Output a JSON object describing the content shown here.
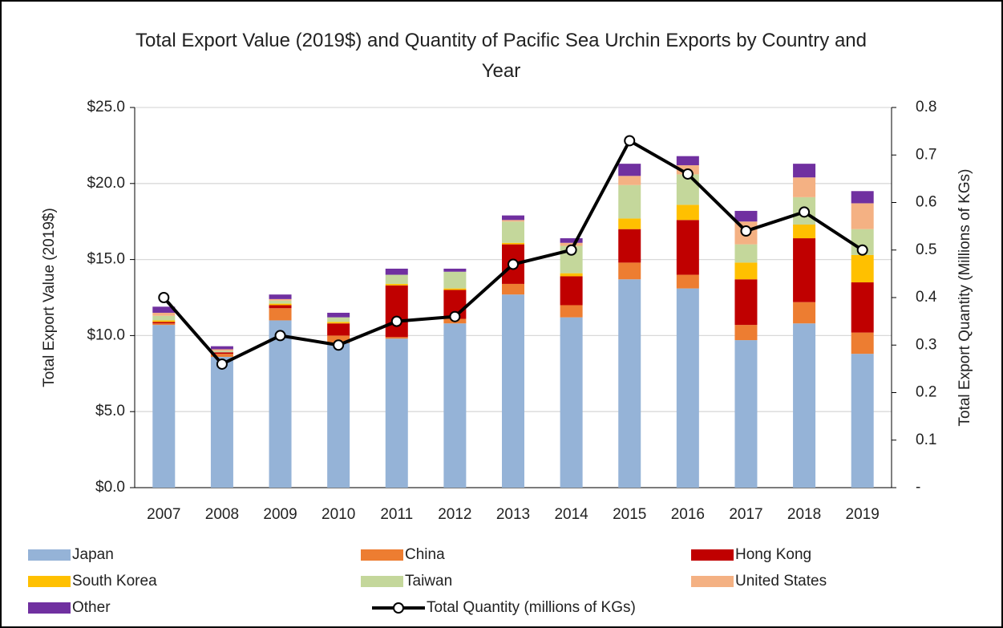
{
  "chart_data": {
    "type": "bar",
    "stacked": true,
    "title": "Total Export Value (2019$) and Quantity of Pacific Sea Urchin Exports by Country and Year",
    "y_label": "Total Export Value (2019$)",
    "y2_label": "Total Export Quantity (Millions of KGs)",
    "categories": [
      "2007",
      "2008",
      "2009",
      "2010",
      "2011",
      "2012",
      "2013",
      "2014",
      "2015",
      "2016",
      "2017",
      "2018",
      "2019"
    ],
    "series": [
      {
        "name": "Japan",
        "color": "#95b3d7",
        "values": [
          10.7,
          8.6,
          11.0,
          9.5,
          9.8,
          10.8,
          12.7,
          11.2,
          13.7,
          13.1,
          9.7,
          10.8,
          8.8
        ]
      },
      {
        "name": "China",
        "color": "#ed7d31",
        "values": [
          0.1,
          0.2,
          0.8,
          0.5,
          0.1,
          0.3,
          0.7,
          0.8,
          1.1,
          0.9,
          1.0,
          1.4,
          1.4
        ]
      },
      {
        "name": "Hong Kong",
        "color": "#c00000",
        "values": [
          0.1,
          0.1,
          0.2,
          0.8,
          3.4,
          1.9,
          2.6,
          1.9,
          2.2,
          3.6,
          3.0,
          4.2,
          3.3
        ]
      },
      {
        "name": "South Korea",
        "color": "#ffc000",
        "values": [
          0.1,
          0.0,
          0.1,
          0.1,
          0.1,
          0.1,
          0.1,
          0.2,
          0.7,
          1.0,
          1.1,
          0.9,
          1.8
        ]
      },
      {
        "name": "Taiwan",
        "color": "#c4d79b",
        "values": [
          0.3,
          0.1,
          0.2,
          0.3,
          0.6,
          1.1,
          1.4,
          1.8,
          2.2,
          2.0,
          1.2,
          1.8,
          1.7
        ]
      },
      {
        "name": "United States",
        "color": "#f4b183",
        "values": [
          0.2,
          0.1,
          0.1,
          0.0,
          0.0,
          0.0,
          0.1,
          0.2,
          0.6,
          0.6,
          1.5,
          1.3,
          1.7
        ]
      },
      {
        "name": "Other",
        "color": "#7030a0",
        "values": [
          0.4,
          0.2,
          0.3,
          0.3,
          0.4,
          0.2,
          0.3,
          0.3,
          0.8,
          0.6,
          0.7,
          0.9,
          0.8
        ]
      },
      {
        "name": "Total Quantity (millions of KGs)",
        "type": "line",
        "axis": "y2",
        "color": "#000000",
        "values": [
          0.4,
          0.26,
          0.32,
          0.3,
          0.35,
          0.36,
          0.47,
          0.5,
          0.73,
          0.66,
          0.54,
          0.58,
          0.5
        ]
      }
    ],
    "ylim": [
      0,
      25
    ],
    "yticks": [
      {
        "value": 0,
        "label": "$0.0"
      },
      {
        "value": 5,
        "label": "$5.0"
      },
      {
        "value": 10,
        "label": "$10.0"
      },
      {
        "value": 15,
        "label": "$15.0"
      },
      {
        "value": 20,
        "label": "$20.0"
      },
      {
        "value": 25,
        "label": "$25.0"
      }
    ],
    "y2lim": [
      0,
      0.8
    ],
    "y2ticks": [
      {
        "value": 0,
        "label": "-"
      },
      0.1,
      0.2,
      0.3,
      0.4,
      0.5,
      0.6,
      0.7,
      0.8
    ],
    "grid": true,
    "legend": "bottom"
  }
}
